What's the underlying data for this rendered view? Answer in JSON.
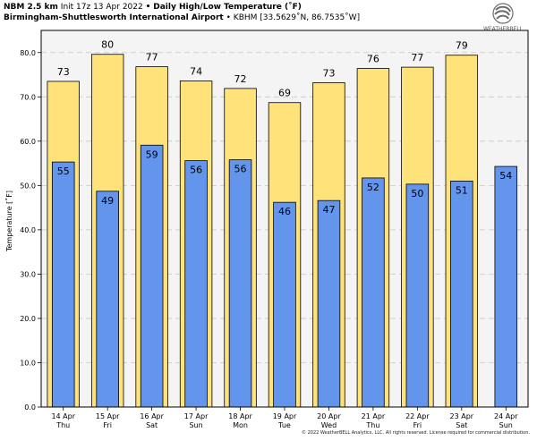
{
  "header": {
    "model": "NBM 2.5 km",
    "init": "Init 17z 13 Apr 2022",
    "bullet": "•",
    "product": "Daily High/Low Temperature (˚F)",
    "station_name": "Birmingham-Shuttlesworth International Airport",
    "station_sep": "•",
    "station_code": "KBHM [33.5629˚N, 86.7535˚W]"
  },
  "logo": {
    "text": "WEATHERBELL",
    "icon": "weatherbell-swirl-logo"
  },
  "footer": {
    "copyright": "© 2022 WeatherBELL Analytics, LLC. All rights reserved. License required for commercial distribution."
  },
  "colors": {
    "high": "#ffe27a",
    "low": "#6495ed",
    "plot_bg": "#f4f4f4",
    "grid": "#c8c8c8",
    "border": "#000000"
  },
  "chart_data": {
    "type": "bar",
    "title": "Daily High/Low Temperature (˚F)",
    "ylabel": "Temperature [˚F]",
    "ylim": [
      0,
      85
    ],
    "yticks": [
      "0.0",
      "10.0",
      "20.0",
      "30.0",
      "40.0",
      "50.0",
      "60.0",
      "70.0",
      "80.0"
    ],
    "ytick_values": [
      0,
      10,
      20,
      30,
      40,
      50,
      60,
      70,
      80
    ],
    "grid": true,
    "categories": [
      [
        "14 Apr",
        "Thu"
      ],
      [
        "15 Apr",
        "Fri"
      ],
      [
        "16 Apr",
        "Sat"
      ],
      [
        "17 Apr",
        "Sun"
      ],
      [
        "18 Apr",
        "Mon"
      ],
      [
        "19 Apr",
        "Tue"
      ],
      [
        "20 Apr",
        "Wed"
      ],
      [
        "21 Apr",
        "Thu"
      ],
      [
        "22 Apr",
        "Fri"
      ],
      [
        "23 Apr",
        "Sat"
      ],
      [
        "24 Apr",
        "Sun"
      ]
    ],
    "series": [
      {
        "values": [
          73.5,
          79.6,
          76.8,
          73.6,
          71.9,
          68.7,
          73.2,
          76.4,
          76.7,
          79.4,
          null
        ],
        "labels": [
          "73",
          "80",
          "77",
          "74",
          "72",
          "69",
          "73",
          "76",
          "77",
          "79",
          ""
        ]
      },
      {
        "values": [
          55.3,
          48.7,
          59.1,
          55.6,
          55.8,
          46.2,
          46.6,
          51.7,
          50.3,
          51.0,
          54.3
        ],
        "labels": [
          "55",
          "49",
          "59",
          "56",
          "56",
          "46",
          "47",
          "52",
          "50",
          "51",
          "54"
        ]
      }
    ]
  }
}
